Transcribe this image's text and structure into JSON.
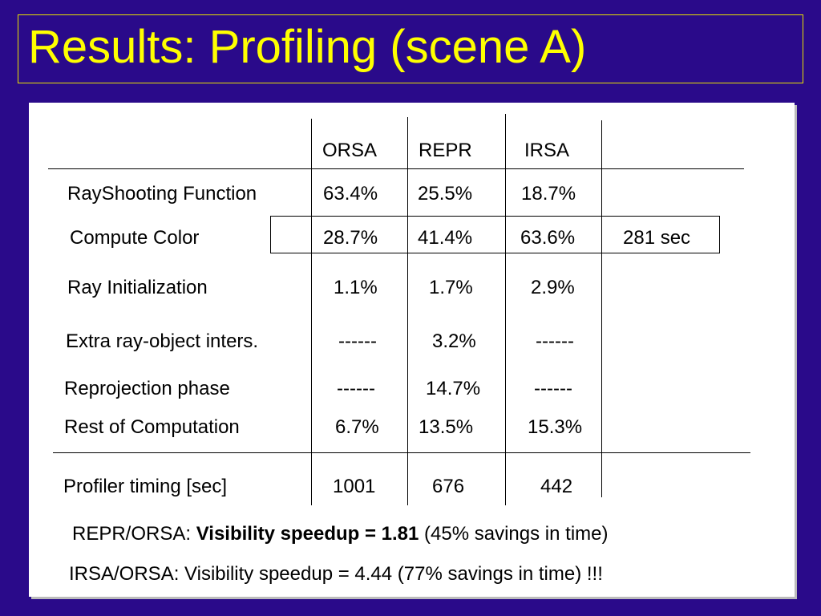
{
  "slide": {
    "title": "Results: Profiling (scene A)"
  },
  "table": {
    "headers": [
      "ORSA",
      "REPR",
      "IRSA"
    ],
    "rows": [
      {
        "label": "RayShooting Function",
        "values": [
          "63.4%",
          "25.5%",
          "18.7%"
        ]
      },
      {
        "label": "Compute Color",
        "values": [
          "28.7%",
          "41.4%",
          "63.6%"
        ],
        "extra": "281 sec"
      },
      {
        "label": "Ray Initialization",
        "values": [
          "1.1%",
          "1.7%",
          "2.9%"
        ]
      },
      {
        "label": "Extra ray-object inters.",
        "values": [
          "------",
          "3.2%",
          "------"
        ]
      },
      {
        "label": "Reprojection phase",
        "values": [
          "------",
          "14.7%",
          "------"
        ]
      },
      {
        "label": "Rest of Computation",
        "values": [
          "6.7%",
          "13.5%",
          "15.3%"
        ]
      }
    ],
    "timing": {
      "label": "Profiler timing [sec]",
      "values": [
        "1001",
        "676",
        "442"
      ]
    }
  },
  "notes": {
    "line1": {
      "prefix": "REPR/ORSA: ",
      "bold": "Visibility speedup  =  1.81",
      "suffix": " (45% savings in time)"
    },
    "line2": "IRSA/ORSA:  Visibility speedup   =  4.44 (77% savings in time) !!!"
  }
}
